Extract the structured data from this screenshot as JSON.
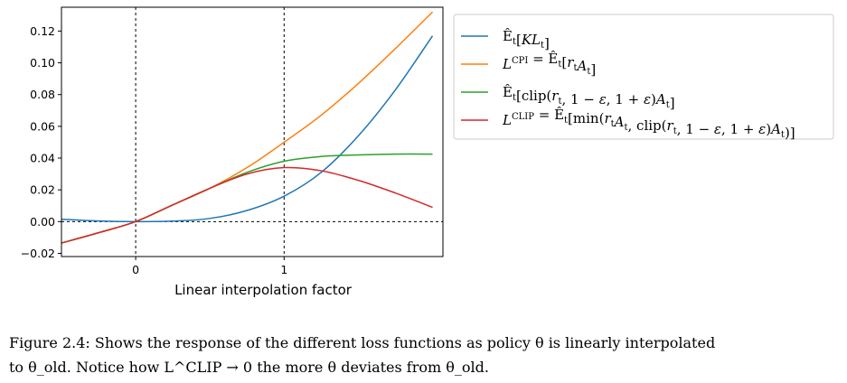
{
  "chart_data": {
    "type": "line",
    "xlabel": "Linear interpolation factor",
    "ylabel": "",
    "xlim": [
      -0.5,
      2.07
    ],
    "ylim": [
      -0.022,
      0.135
    ],
    "xticks": [
      0,
      1
    ],
    "xtick_labels": [
      "0",
      "1"
    ],
    "yticks": [
      -0.02,
      0.0,
      0.02,
      0.04,
      0.06,
      0.08,
      0.1,
      0.12
    ],
    "ytick_labels": [
      "−0.02",
      "0.00",
      "0.02",
      "0.04",
      "0.06",
      "0.08",
      "0.10",
      "0.12"
    ],
    "reference_lines": {
      "vertical": [
        0,
        1
      ],
      "horizontal": [
        0
      ]
    },
    "grid": false,
    "legend_position": "outside-right-top",
    "series": [
      {
        "name": "Ê_t[KL_t]",
        "color": "#1f77b4",
        "x": [
          -0.5,
          -0.25,
          0,
          0.25,
          0.5,
          0.75,
          1.0,
          1.25,
          1.5,
          1.75,
          2.0
        ],
        "y": [
          0.0015,
          0.0004,
          0.0,
          0.0003,
          0.002,
          0.007,
          0.016,
          0.031,
          0.054,
          0.083,
          0.117
        ]
      },
      {
        "name": "L^CPI = Ê_t[r_t A_t]",
        "color": "#ff7f0e",
        "x": [
          -0.5,
          -0.25,
          0,
          0.25,
          0.5,
          0.75,
          1.0,
          1.25,
          1.5,
          1.75,
          2.0
        ],
        "y": [
          -0.0135,
          -0.007,
          0.0,
          0.0105,
          0.021,
          0.034,
          0.05,
          0.067,
          0.087,
          0.109,
          0.132
        ]
      },
      {
        "name": "Ê_t[clip(r_t, 1 − ε, 1 + ε)A_t]",
        "color": "#2ca02c",
        "x": [
          -0.5,
          -0.25,
          0,
          0.25,
          0.5,
          0.75,
          1.0,
          1.25,
          1.5,
          1.75,
          2.0
        ],
        "y": [
          -0.0135,
          -0.007,
          0.0,
          0.0105,
          0.021,
          0.031,
          0.038,
          0.041,
          0.042,
          0.0425,
          0.0425
        ]
      },
      {
        "name": "L^CLIP = Ê_t[min(r_t A_t, clip(r_t, 1 − ε, 1 + ε)A_t)]",
        "color": "#d62728",
        "x": [
          -0.5,
          -0.25,
          0,
          0.25,
          0.5,
          0.75,
          1.0,
          1.25,
          1.5,
          1.75,
          2.0
        ],
        "y": [
          -0.0135,
          -0.007,
          0.0,
          0.0105,
          0.021,
          0.03,
          0.034,
          0.032,
          0.026,
          0.018,
          0.009
        ]
      }
    ]
  },
  "legend": {
    "items": [
      {
        "color": "#1f77b4",
        "parts": [
          [
            "Ê",
            ""
          ],
          [
            "t",
            "sub"
          ],
          [
            "[",
            ""
          ],
          [
            "KL",
            "i"
          ],
          [
            "t",
            "sub"
          ],
          [
            "]",
            ""
          ]
        ]
      },
      {
        "color": "#ff7f0e",
        "parts": [
          [
            "L",
            "i"
          ],
          [
            "CPI",
            "sup"
          ],
          [
            " = ",
            ""
          ],
          [
            "Ê",
            ""
          ],
          [
            "t",
            "sub"
          ],
          [
            "[",
            ""
          ],
          [
            "r",
            "i"
          ],
          [
            "t",
            "sub"
          ],
          [
            "A",
            "i"
          ],
          [
            "t",
            "sub"
          ],
          [
            "]",
            ""
          ]
        ]
      },
      {
        "color": "#2ca02c",
        "parts": [
          [
            "Ê",
            ""
          ],
          [
            "t",
            "sub"
          ],
          [
            "[clip(",
            ""
          ],
          [
            "r",
            "i"
          ],
          [
            "t",
            "sub"
          ],
          [
            ", 1 − ",
            ""
          ],
          [
            "ε",
            "i"
          ],
          [
            ", 1 + ",
            ""
          ],
          [
            "ε",
            "i"
          ],
          [
            ")",
            ""
          ],
          [
            "A",
            "i"
          ],
          [
            "t",
            "sub"
          ],
          [
            "]",
            ""
          ]
        ]
      },
      {
        "color": "#d62728",
        "parts": [
          [
            "L",
            "i"
          ],
          [
            "CLIP",
            "sup"
          ],
          [
            " = ",
            ""
          ],
          [
            "Ê",
            ""
          ],
          [
            "t",
            "sub"
          ],
          [
            "[min(",
            ""
          ],
          [
            "r",
            "i"
          ],
          [
            "t",
            "sub"
          ],
          [
            "A",
            "i"
          ],
          [
            "t",
            "sub"
          ],
          [
            ", clip(",
            ""
          ],
          [
            "r",
            "i"
          ],
          [
            "t",
            "sub"
          ],
          [
            ", 1 − ",
            ""
          ],
          [
            "ε",
            "i"
          ],
          [
            ", 1 + ",
            ""
          ],
          [
            "ε",
            "i"
          ],
          [
            ")",
            ""
          ],
          [
            "A",
            "i"
          ],
          [
            "t",
            "sub"
          ],
          [
            ")]",
            ""
          ]
        ]
      }
    ]
  },
  "caption": {
    "line1": "Figure 2.4: Shows the response of the different loss functions as policy θ is linearly interpolated",
    "line2": "to θ_old. Notice how L^CLIP → 0 the more θ deviates from θ_old."
  }
}
